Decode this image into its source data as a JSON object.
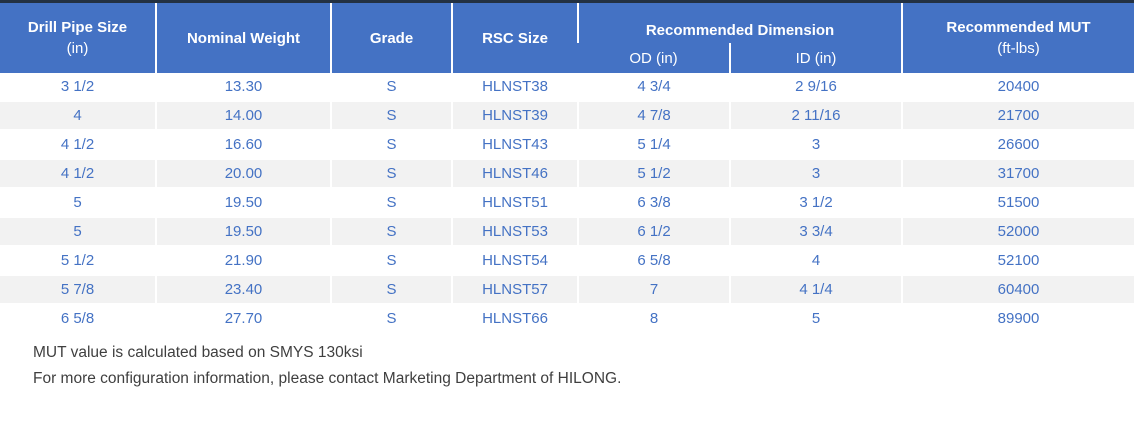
{
  "colors": {
    "header_bg": "#4472C4",
    "header_text": "#FFFFFF",
    "body_text": "#4472C4",
    "row_alt_bg": "#F2F2F2",
    "top_rule": "#233142"
  },
  "table": {
    "header": {
      "drill_pipe_size": "Drill Pipe Size",
      "drill_pipe_size_unit": "(in)",
      "nominal_weight": "Nominal Weight",
      "grade": "Grade",
      "rsc_size": "RSC Size",
      "recommended_dimension": "Recommended Dimension",
      "od": "OD (in)",
      "id": "ID (in)",
      "recommended_mut": "Recommended MUT",
      "recommended_mut_unit": "(ft-lbs)"
    },
    "rows": [
      [
        "3 1/2",
        "13.30",
        "S",
        "HLNST38",
        "4 3/4",
        "2 9/16",
        "20400"
      ],
      [
        "4",
        "14.00",
        "S",
        "HLNST39",
        "4 7/8",
        "2 11/16",
        "21700"
      ],
      [
        "4 1/2",
        "16.60",
        "S",
        "HLNST43",
        "5 1/4",
        "3",
        "26600"
      ],
      [
        "4 1/2",
        "20.00",
        "S",
        "HLNST46",
        "5 1/2",
        "3",
        "31700"
      ],
      [
        "5",
        "19.50",
        "S",
        "HLNST51",
        "6 3/8",
        "3 1/2",
        "51500"
      ],
      [
        "5",
        "19.50",
        "S",
        "HLNST53",
        "6 1/2",
        "3 3/4",
        "52000"
      ],
      [
        "5 1/2",
        "21.90",
        "S",
        "HLNST54",
        "6 5/8",
        "4",
        "52100"
      ],
      [
        "5 7/8",
        "23.40",
        "S",
        "HLNST57",
        "7",
        "4 1/4",
        "60400"
      ],
      [
        "6 5/8",
        "27.70",
        "S",
        "HLNST66",
        "8",
        "5",
        "89900"
      ]
    ],
    "notes": [
      "MUT value is calculated based on SMYS 130ksi",
      "For more configuration information, please contact Marketing Department of HILONG."
    ]
  }
}
